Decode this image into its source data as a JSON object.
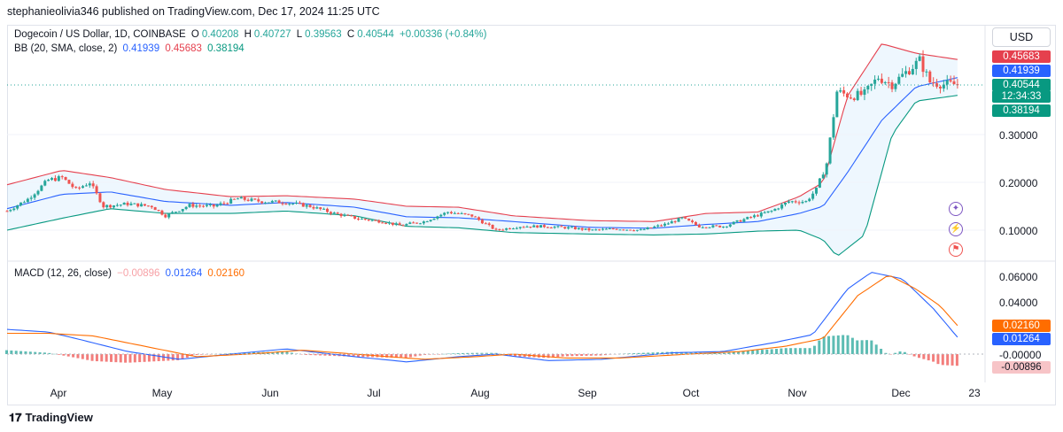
{
  "header": {
    "text": "stephanieolivia346 published on TradingView.com, Dec 17, 2024 11:25 UTC"
  },
  "footer": {
    "brand": "TradingView"
  },
  "price_axis": {
    "currency": "USD",
    "ticks": [
      "0.30000",
      "0.20000",
      "0.10000"
    ]
  },
  "macd_axis": {
    "ticks": [
      "0.06000",
      "0.04000",
      "-0.00000"
    ]
  },
  "x_axis": {
    "labels": [
      "Apr",
      "May",
      "Jun",
      "Jul",
      "Aug",
      "Sep",
      "Oct",
      "Nov",
      "Dec",
      "23"
    ]
  },
  "legend": {
    "symbol": "Dogecoin / US Dollar, 1D, COINBASE",
    "o_label": "O",
    "o": "0.40208",
    "h_label": "H",
    "h": "0.40727",
    "l_label": "L",
    "l": "0.39563",
    "c_label": "C",
    "c": "0.40544",
    "change": "+0.00336 (+0.84%)",
    "bb_label": "BB (20, SMA, close, 2)",
    "bb_basis": "0.41939",
    "bb_upper": "0.45683",
    "bb_lower": "0.38194",
    "macd_label": "MACD (12, 26, close)",
    "macd_hist": "−0.00896",
    "macd_line": "0.01264",
    "macd_signal": "0.02160"
  },
  "price_tags": {
    "upper": "0.45683",
    "basis": "0.41939",
    "last": "0.40544",
    "countdown": "12:34:33",
    "lower": "0.38194"
  },
  "macd_tags": {
    "signal": "0.02160",
    "macd": "0.01264",
    "hist": "-0.00896"
  },
  "colors": {
    "up": "#26a69a",
    "down": "#ef5350",
    "bb_upper": "#e5404e",
    "bb_basis": "#2962ff",
    "bb_lower": "#089981",
    "bb_fill": "#2196f3",
    "macd": "#2962ff",
    "signal": "#ff6d00"
  },
  "chart_data": {
    "type": "candlestick",
    "title": "Dogecoin / US Dollar, 1D, COINBASE",
    "x_range": [
      "2024-03-16",
      "2024-12-25"
    ],
    "price_range": [
      0.04,
      0.505
    ],
    "price_points": [
      [
        "2024-03-16",
        0.14
      ],
      [
        "2024-03-22",
        0.165
      ],
      [
        "2024-03-28",
        0.205
      ],
      [
        "2024-04-01",
        0.21
      ],
      [
        "2024-04-05",
        0.185
      ],
      [
        "2024-04-09",
        0.2
      ],
      [
        "2024-04-13",
        0.15
      ],
      [
        "2024-04-20",
        0.155
      ],
      [
        "2024-04-27",
        0.15
      ],
      [
        "2024-05-01",
        0.13
      ],
      [
        "2024-05-08",
        0.152
      ],
      [
        "2024-05-15",
        0.15
      ],
      [
        "2024-05-22",
        0.166
      ],
      [
        "2024-05-29",
        0.16
      ],
      [
        "2024-06-05",
        0.158
      ],
      [
        "2024-06-12",
        0.15
      ],
      [
        "2024-06-19",
        0.135
      ],
      [
        "2024-06-26",
        0.124
      ],
      [
        "2024-07-03",
        0.118
      ],
      [
        "2024-07-08",
        0.11
      ],
      [
        "2024-07-15",
        0.118
      ],
      [
        "2024-07-22",
        0.138
      ],
      [
        "2024-07-29",
        0.13
      ],
      [
        "2024-08-05",
        0.1
      ],
      [
        "2024-08-12",
        0.108
      ],
      [
        "2024-08-19",
        0.108
      ],
      [
        "2024-08-26",
        0.105
      ],
      [
        "2024-09-02",
        0.1
      ],
      [
        "2024-09-09",
        0.103
      ],
      [
        "2024-09-16",
        0.1
      ],
      [
        "2024-09-23",
        0.112
      ],
      [
        "2024-09-28",
        0.125
      ],
      [
        "2024-10-03",
        0.108
      ],
      [
        "2024-10-10",
        0.108
      ],
      [
        "2024-10-17",
        0.125
      ],
      [
        "2024-10-24",
        0.14
      ],
      [
        "2024-10-29",
        0.16
      ],
      [
        "2024-11-03",
        0.16
      ],
      [
        "2024-11-06",
        0.185
      ],
      [
        "2024-11-09",
        0.24
      ],
      [
        "2024-11-12",
        0.39
      ],
      [
        "2024-11-16",
        0.38
      ],
      [
        "2024-11-20",
        0.385
      ],
      [
        "2024-11-24",
        0.42
      ],
      [
        "2024-11-28",
        0.405
      ],
      [
        "2024-12-02",
        0.43
      ],
      [
        "2024-12-06",
        0.455
      ],
      [
        "2024-12-09",
        0.41
      ],
      [
        "2024-12-13",
        0.405
      ],
      [
        "2024-12-17",
        0.405
      ]
    ],
    "bollinger": {
      "params": "20, SMA, close, 2",
      "upper": [
        [
          "2024-03-16",
          0.195
        ],
        [
          "2024-04-01",
          0.225
        ],
        [
          "2024-04-15",
          0.21
        ],
        [
          "2024-05-01",
          0.185
        ],
        [
          "2024-05-20",
          0.17
        ],
        [
          "2024-06-05",
          0.172
        ],
        [
          "2024-06-25",
          0.165
        ],
        [
          "2024-07-10",
          0.15
        ],
        [
          "2024-07-25",
          0.148
        ],
        [
          "2024-08-10",
          0.13
        ],
        [
          "2024-09-01",
          0.12
        ],
        [
          "2024-09-20",
          0.118
        ],
        [
          "2024-10-05",
          0.135
        ],
        [
          "2024-10-20",
          0.138
        ],
        [
          "2024-11-01",
          0.17
        ],
        [
          "2024-11-08",
          0.2
        ],
        [
          "2024-11-15",
          0.38
        ],
        [
          "2024-11-25",
          0.49
        ],
        [
          "2024-12-05",
          0.47
        ],
        [
          "2024-12-17",
          0.457
        ]
      ],
      "basis": [
        [
          "2024-03-16",
          0.145
        ],
        [
          "2024-04-01",
          0.175
        ],
        [
          "2024-04-15",
          0.18
        ],
        [
          "2024-05-01",
          0.16
        ],
        [
          "2024-05-20",
          0.152
        ],
        [
          "2024-06-05",
          0.158
        ],
        [
          "2024-06-25",
          0.148
        ],
        [
          "2024-07-10",
          0.128
        ],
        [
          "2024-07-25",
          0.126
        ],
        [
          "2024-08-10",
          0.118
        ],
        [
          "2024-09-01",
          0.106
        ],
        [
          "2024-09-20",
          0.104
        ],
        [
          "2024-10-05",
          0.112
        ],
        [
          "2024-10-20",
          0.118
        ],
        [
          "2024-11-01",
          0.135
        ],
        [
          "2024-11-08",
          0.15
        ],
        [
          "2024-11-15",
          0.22
        ],
        [
          "2024-11-25",
          0.33
        ],
        [
          "2024-12-05",
          0.4
        ],
        [
          "2024-12-17",
          0.419
        ]
      ],
      "lower": [
        [
          "2024-03-16",
          0.1
        ],
        [
          "2024-04-01",
          0.125
        ],
        [
          "2024-04-15",
          0.145
        ],
        [
          "2024-05-01",
          0.135
        ],
        [
          "2024-05-20",
          0.135
        ],
        [
          "2024-06-05",
          0.14
        ],
        [
          "2024-06-25",
          0.13
        ],
        [
          "2024-07-10",
          0.108
        ],
        [
          "2024-07-25",
          0.105
        ],
        [
          "2024-08-10",
          0.095
        ],
        [
          "2024-09-01",
          0.092
        ],
        [
          "2024-09-20",
          0.09
        ],
        [
          "2024-10-05",
          0.092
        ],
        [
          "2024-10-20",
          0.098
        ],
        [
          "2024-11-01",
          0.1
        ],
        [
          "2024-11-08",
          0.08
        ],
        [
          "2024-11-12",
          0.045
        ],
        [
          "2024-11-20",
          0.09
        ],
        [
          "2024-11-28",
          0.3
        ],
        [
          "2024-12-05",
          0.37
        ],
        [
          "2024-12-17",
          0.382
        ]
      ]
    },
    "macd": {
      "params": "12, 26, close",
      "range": [
        -0.012,
        0.066
      ],
      "macd": [
        [
          "2024-03-16",
          0.019
        ],
        [
          "2024-03-28",
          0.017
        ],
        [
          "2024-04-05",
          0.012
        ],
        [
          "2024-04-20",
          0.002
        ],
        [
          "2024-05-05",
          -0.004
        ],
        [
          "2024-05-20",
          0.0
        ],
        [
          "2024-06-05",
          0.004
        ],
        [
          "2024-06-25",
          -0.002
        ],
        [
          "2024-07-10",
          -0.006
        ],
        [
          "2024-07-25",
          -0.002
        ],
        [
          "2024-08-05",
          0.0
        ],
        [
          "2024-08-20",
          -0.005
        ],
        [
          "2024-09-05",
          -0.004
        ],
        [
          "2024-09-25",
          0.001
        ],
        [
          "2024-10-10",
          0.002
        ],
        [
          "2024-10-25",
          0.009
        ],
        [
          "2024-11-05",
          0.015
        ],
        [
          "2024-11-15",
          0.05
        ],
        [
          "2024-11-22",
          0.063
        ],
        [
          "2024-12-01",
          0.058
        ],
        [
          "2024-12-10",
          0.035
        ],
        [
          "2024-12-17",
          0.013
        ]
      ],
      "signal": [
        [
          "2024-03-16",
          0.016
        ],
        [
          "2024-03-28",
          0.016
        ],
        [
          "2024-04-10",
          0.014
        ],
        [
          "2024-04-25",
          0.006
        ],
        [
          "2024-05-10",
          -0.002
        ],
        [
          "2024-05-25",
          0.0
        ],
        [
          "2024-06-10",
          0.003
        ],
        [
          "2024-06-25",
          0.0
        ],
        [
          "2024-07-15",
          -0.004
        ],
        [
          "2024-07-30",
          -0.002
        ],
        [
          "2024-08-10",
          0.0
        ],
        [
          "2024-08-25",
          -0.003
        ],
        [
          "2024-09-10",
          -0.003
        ],
        [
          "2024-09-30",
          0.0
        ],
        [
          "2024-10-15",
          0.002
        ],
        [
          "2024-10-28",
          0.006
        ],
        [
          "2024-11-08",
          0.012
        ],
        [
          "2024-11-18",
          0.045
        ],
        [
          "2024-11-27",
          0.061
        ],
        [
          "2024-12-05",
          0.05
        ],
        [
          "2024-12-12",
          0.037
        ],
        [
          "2024-12-17",
          0.022
        ]
      ],
      "histogram_last": -0.00896
    }
  }
}
